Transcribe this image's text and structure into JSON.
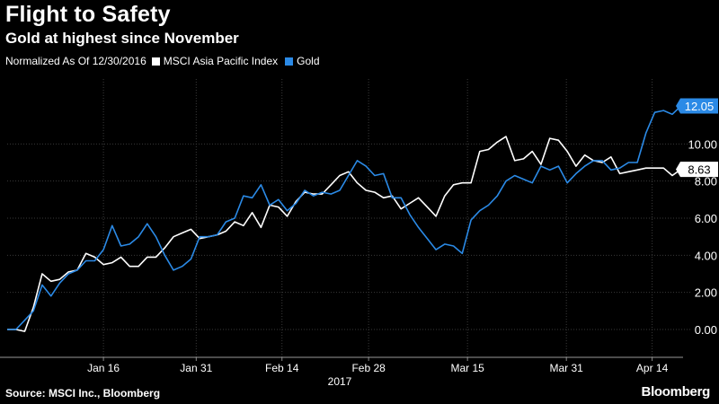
{
  "header": {
    "title": "Flight to Safety",
    "subtitle": "Gold at highest since November",
    "normalized_note": "Normalized As Of 12/30/2016"
  },
  "footer": {
    "source": "Source: MSCI Inc., Bloomberg",
    "brand": "Bloomberg"
  },
  "chart_data": {
    "type": "line",
    "title": "Flight to Safety",
    "subtitle": "Gold at highest since November",
    "xlabel": "2017",
    "ylabel": "",
    "ylim": [
      -1.5,
      13.5
    ],
    "yticks": [
      0,
      2,
      4,
      6,
      8,
      10
    ],
    "ytick_labels": [
      "0.00",
      "2.00",
      "4.00",
      "6.00",
      "8.00",
      "10.00"
    ],
    "xlim": [
      0,
      76
    ],
    "xticks": [
      {
        "x": 11,
        "label": "Jan 16"
      },
      {
        "x": 21.6,
        "label": "Jan 31"
      },
      {
        "x": 31.4,
        "label": "Feb 14"
      },
      {
        "x": 41.3,
        "label": "Feb 28"
      },
      {
        "x": 52.6,
        "label": "Mar 15"
      },
      {
        "x": 63.9,
        "label": "Mar 31"
      },
      {
        "x": 73.7,
        "label": "Apr 14"
      }
    ],
    "year_label": "2017",
    "grid": true,
    "legend": "top-left",
    "colors": {
      "background": "#000000",
      "grid": "#3a3a3a",
      "msci": "#ffffff",
      "gold": "#2b8ae6"
    },
    "series": [
      {
        "name": "MSCI Asia Pacific Index",
        "color": "#ffffff",
        "end_label": "8.63",
        "values": [
          [
            0,
            0
          ],
          [
            1,
            0
          ],
          [
            2,
            -0.1
          ],
          [
            3,
            1.2
          ],
          [
            4,
            3
          ],
          [
            5,
            2.6
          ],
          [
            6,
            2.7
          ],
          [
            7,
            3.1
          ],
          [
            8,
            3.2
          ],
          [
            9,
            4.1
          ],
          [
            10,
            3.9
          ],
          [
            11,
            3.5
          ],
          [
            12,
            3.6
          ],
          [
            13,
            3.9
          ],
          [
            14,
            3.4
          ],
          [
            15,
            3.4
          ],
          [
            16,
            3.9
          ],
          [
            17,
            3.9
          ],
          [
            18,
            4.4
          ],
          [
            19,
            5
          ],
          [
            20,
            5.2
          ],
          [
            21,
            5.4
          ],
          [
            22,
            4.9
          ],
          [
            23,
            5
          ],
          [
            24,
            5.1
          ],
          [
            25,
            5.3
          ],
          [
            26,
            5.8
          ],
          [
            27,
            5.6
          ],
          [
            28,
            6.3
          ],
          [
            29,
            5.5
          ],
          [
            30,
            6.7
          ],
          [
            31,
            6.6
          ],
          [
            32,
            6.1
          ],
          [
            33,
            6.9
          ],
          [
            34,
            7.4
          ],
          [
            35,
            7.3
          ],
          [
            36,
            7.3
          ],
          [
            37,
            7.8
          ],
          [
            38,
            8.3
          ],
          [
            39,
            8.5
          ],
          [
            40,
            7.9
          ],
          [
            41,
            7.5
          ],
          [
            42,
            7.4
          ],
          [
            43,
            7.1
          ],
          [
            44,
            7.2
          ],
          [
            45,
            6.5
          ],
          [
            46,
            6.8
          ],
          [
            47,
            7.1
          ],
          [
            48,
            6.6
          ],
          [
            49,
            6.1
          ],
          [
            50,
            7.2
          ],
          [
            51,
            7.8
          ],
          [
            52,
            7.9
          ],
          [
            53,
            7.9
          ],
          [
            54,
            9.6
          ],
          [
            55,
            9.7
          ],
          [
            56,
            10.1
          ],
          [
            57,
            10.4
          ],
          [
            58,
            9.1
          ],
          [
            59,
            9.2
          ],
          [
            60,
            9.6
          ],
          [
            61,
            8.9
          ],
          [
            62,
            10.3
          ],
          [
            63,
            10.2
          ],
          [
            64,
            9.6
          ],
          [
            65,
            8.8
          ],
          [
            66,
            9.4
          ],
          [
            67,
            9.1
          ],
          [
            68,
            9
          ],
          [
            69,
            9.3
          ],
          [
            70,
            8.4
          ],
          [
            71,
            8.5
          ],
          [
            72,
            8.6
          ],
          [
            73,
            8.7
          ],
          [
            74,
            8.7
          ],
          [
            75,
            8.7
          ],
          [
            76,
            8.3
          ],
          [
            77,
            8.63
          ]
        ]
      },
      {
        "name": "Gold",
        "color": "#2b8ae6",
        "end_label": "12.05",
        "values": [
          [
            0,
            0
          ],
          [
            1,
            0
          ],
          [
            2,
            0.5
          ],
          [
            3,
            1
          ],
          [
            4,
            2.4
          ],
          [
            5,
            1.8
          ],
          [
            6,
            2.5
          ],
          [
            7,
            3
          ],
          [
            8,
            3.2
          ],
          [
            9,
            3.7
          ],
          [
            10,
            3.7
          ],
          [
            11,
            4.3
          ],
          [
            12,
            5.6
          ],
          [
            13,
            4.5
          ],
          [
            14,
            4.6
          ],
          [
            15,
            5
          ],
          [
            16,
            5.7
          ],
          [
            17,
            5
          ],
          [
            18,
            4
          ],
          [
            19,
            3.2
          ],
          [
            20,
            3.4
          ],
          [
            21,
            3.8
          ],
          [
            22,
            5
          ],
          [
            23,
            5
          ],
          [
            24,
            5.1
          ],
          [
            25,
            5.8
          ],
          [
            26,
            6
          ],
          [
            27,
            7.2
          ],
          [
            28,
            7.1
          ],
          [
            29,
            7.8
          ],
          [
            30,
            6.7
          ],
          [
            31,
            7
          ],
          [
            32,
            6.4
          ],
          [
            33,
            6.8
          ],
          [
            34,
            7.5
          ],
          [
            35,
            7.2
          ],
          [
            36,
            7.4
          ],
          [
            37,
            7.3
          ],
          [
            38,
            7.5
          ],
          [
            39,
            8.3
          ],
          [
            40,
            9.1
          ],
          [
            41,
            8.8
          ],
          [
            42,
            8.3
          ],
          [
            43,
            8.4
          ],
          [
            44,
            7.1
          ],
          [
            45,
            7.1
          ],
          [
            46,
            6.2
          ],
          [
            47,
            5.5
          ],
          [
            48,
            4.9
          ],
          [
            49,
            4.3
          ],
          [
            50,
            4.6
          ],
          [
            51,
            4.5
          ],
          [
            52,
            4.1
          ],
          [
            53,
            5.9
          ],
          [
            54,
            6.4
          ],
          [
            55,
            6.7
          ],
          [
            56,
            7.2
          ],
          [
            57,
            8
          ],
          [
            58,
            8.3
          ],
          [
            59,
            8.1
          ],
          [
            60,
            7.9
          ],
          [
            61,
            8.8
          ],
          [
            62,
            8.6
          ],
          [
            63,
            8.8
          ],
          [
            64,
            7.9
          ],
          [
            65,
            8.4
          ],
          [
            66,
            8.8
          ],
          [
            67,
            9.1
          ],
          [
            68,
            9.1
          ],
          [
            69,
            8.6
          ],
          [
            70,
            8.7
          ],
          [
            71,
            9
          ],
          [
            72,
            9
          ],
          [
            73,
            10.6
          ],
          [
            74,
            11.7
          ],
          [
            75,
            11.8
          ],
          [
            76,
            11.6
          ],
          [
            77,
            12.05
          ]
        ]
      }
    ]
  }
}
